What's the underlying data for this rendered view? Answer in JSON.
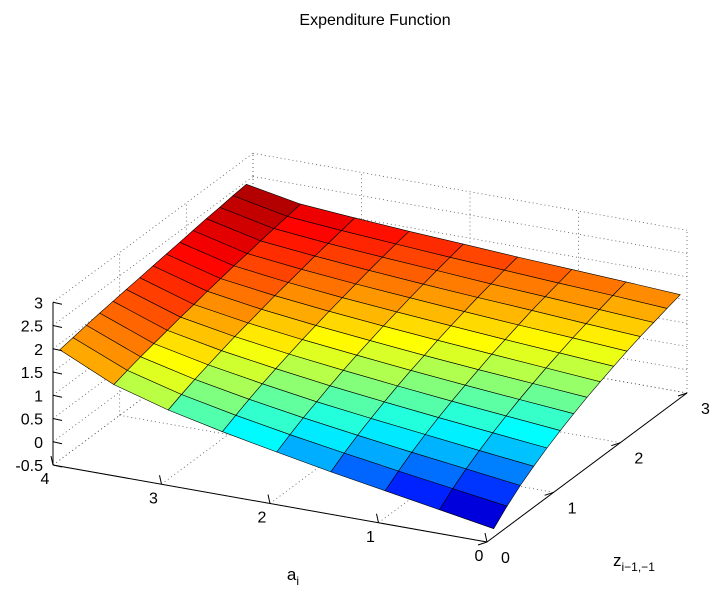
{
  "chart_data": {
    "type": "surface",
    "title": "Expenditure Function",
    "xlabel": "a_i",
    "ylabel": "z_{i-1,-1}",
    "zlabel": "",
    "xlim": [
      0,
      4
    ],
    "ylim": [
      0,
      3
    ],
    "zlim": [
      -0.5,
      3
    ],
    "grid": true,
    "colormap": "jet",
    "xticks": [
      "0",
      "1",
      "2",
      "3",
      "4"
    ],
    "yticks": [
      "0",
      "1",
      "2",
      "3"
    ],
    "zticks": [
      "-0.5",
      "0",
      "0.5",
      "1",
      "1.5",
      "2",
      "2.5",
      "3"
    ],
    "a_values": [
      0,
      0.5,
      1,
      1.5,
      2,
      2.5,
      3,
      3.5,
      4
    ],
    "z_values": [
      0.1,
      0.3,
      0.5,
      0.7,
      0.9,
      1.1,
      1.3,
      1.5,
      1.7,
      1.9,
      2.1,
      2.3,
      2.5,
      2.7,
      2.9
    ],
    "z_grid": [
      [
        -0.32,
        -0.05,
        0.18,
        0.38,
        0.56,
        0.72,
        0.87,
        1.01,
        1.13,
        1.25,
        1.36,
        1.46,
        1.55,
        1.64,
        1.72
      ],
      [
        -0.12,
        0.12,
        0.33,
        0.51,
        0.68,
        0.83,
        0.97,
        1.1,
        1.22,
        1.33,
        1.44,
        1.53,
        1.62,
        1.71,
        1.79
      ],
      [
        0.08,
        0.29,
        0.48,
        0.65,
        0.8,
        0.94,
        1.07,
        1.19,
        1.31,
        1.41,
        1.51,
        1.61,
        1.69,
        1.77,
        1.85
      ],
      [
        0.28,
        0.47,
        0.64,
        0.79,
        0.93,
        1.06,
        1.18,
        1.29,
        1.4,
        1.5,
        1.59,
        1.68,
        1.76,
        1.84,
        1.91
      ],
      [
        0.5,
        0.66,
        0.81,
        0.94,
        1.07,
        1.19,
        1.3,
        1.4,
        1.5,
        1.59,
        1.68,
        1.76,
        1.84,
        1.91,
        1.98
      ],
      [
        0.73,
        0.87,
        1.0,
        1.12,
        1.23,
        1.33,
        1.43,
        1.52,
        1.61,
        1.69,
        1.77,
        1.85,
        1.92,
        1.99,
        2.05
      ],
      [
        0.99,
        1.11,
        1.22,
        1.32,
        1.41,
        1.5,
        1.58,
        1.66,
        1.74,
        1.81,
        1.88,
        1.95,
        2.01,
        2.07,
        2.13
      ],
      [
        1.33,
        1.42,
        1.5,
        1.57,
        1.64,
        1.71,
        1.77,
        1.84,
        1.9,
        1.96,
        2.01,
        2.07,
        2.12,
        2.17,
        2.22
      ],
      [
        1.87,
        1.92,
        1.97,
        2.02,
        2.06,
        2.1,
        2.14,
        2.18,
        2.22,
        2.26,
        2.3,
        2.34,
        2.37,
        2.41,
        2.44
      ]
    ]
  }
}
